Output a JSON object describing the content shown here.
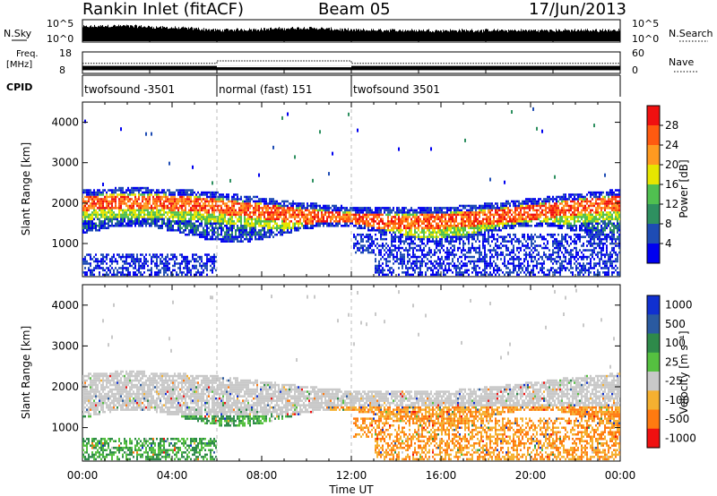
{
  "header": {
    "station": "Rankin Inlet (fitACF)",
    "beam": "Beam 05",
    "date": "17/Jun/2013"
  },
  "labels": {
    "nsky": "N.Sky",
    "nsearch": "N.Search",
    "freq": "Freq.",
    "mhz": "[MHz]",
    "nave": "Nave",
    "cpid": "CPID"
  },
  "chart_data": [
    {
      "type": "line",
      "title": "",
      "series": [
        {
          "name": "N.Sky",
          "x": [
            "00:00",
            "01:00",
            "02:00",
            "03:00",
            "04:00",
            "05:00",
            "06:00",
            "08:00",
            "10:00",
            "12:00",
            "16:00",
            "20:00",
            "24:00"
          ],
          "values": [
            10000,
            20000,
            20000,
            10000,
            5000,
            3000,
            1000,
            2000,
            5000,
            1000,
            800,
            800,
            1000
          ]
        }
      ],
      "y_left_ticks": [
        "10^5",
        "10^0"
      ],
      "y_right_ticks": [
        "10^5",
        "10^0"
      ],
      "yscale": "log"
    },
    {
      "type": "line",
      "title": "",
      "series": [
        {
          "name": "Freq.",
          "x": [
            "00:00",
            "06:00",
            "12:00",
            "24:00"
          ],
          "values": [
            10.5,
            10.5,
            10.5,
            10.5
          ]
        },
        {
          "name": "Nave",
          "x": [
            "00:00",
            "06:00",
            "06:00",
            "12:00",
            "12:00",
            "24:00"
          ],
          "values": [
            28,
            28,
            35,
            35,
            28,
            28
          ]
        }
      ],
      "y_left_ticks": [
        "18",
        "8"
      ],
      "y_right_ticks": [
        "60",
        "0"
      ]
    },
    {
      "type": "table",
      "title": "",
      "segments": [
        {
          "label": "twofsound -3501",
          "start_h": 0,
          "end_h": 6
        },
        {
          "label": "normal (fast) 151",
          "start_h": 6,
          "end_h": 12
        },
        {
          "label": "twofsound 3501",
          "start_h": 12,
          "end_h": 24
        }
      ]
    },
    {
      "type": "heatmap",
      "title": "",
      "ylabel": "Slant Range [km]",
      "ylim": [
        180,
        4500
      ],
      "yticks": [
        1000,
        2000,
        3000,
        4000
      ],
      "xlim_h": [
        0,
        24
      ],
      "colorbar_label": "Power [dB]",
      "colorbar_ticks": [
        "4",
        "8",
        "12",
        "16",
        "20",
        "24",
        "28"
      ],
      "colors": [
        "#0000f0",
        "#1e4cb4",
        "#2e9060",
        "#50c050",
        "#e6e600",
        "#ff9a20",
        "#ff5a10",
        "#f01010"
      ]
    },
    {
      "type": "heatmap",
      "title": "",
      "ylabel": "Slant Range [km]",
      "xlabel": "Time UT",
      "ylim": [
        180,
        4500
      ],
      "yticks": [
        1000,
        2000,
        3000,
        4000
      ],
      "xlim_h": [
        0,
        24
      ],
      "xticks": [
        "00:00",
        "04:00",
        "08:00",
        "12:00",
        "16:00",
        "20:00",
        "00:00"
      ],
      "colorbar_label": "Velocity [m s⁻¹]",
      "colorbar_ticks": [
        "1000",
        "500",
        "100",
        "25",
        "-25",
        "-100",
        "-500",
        "-1000"
      ],
      "colors": [
        "#1030d0",
        "#2a5aa0",
        "#2e8a4a",
        "#55c040",
        "#c8c8c8",
        "#f5b030",
        "#ff7a10",
        "#f01010"
      ]
    }
  ]
}
